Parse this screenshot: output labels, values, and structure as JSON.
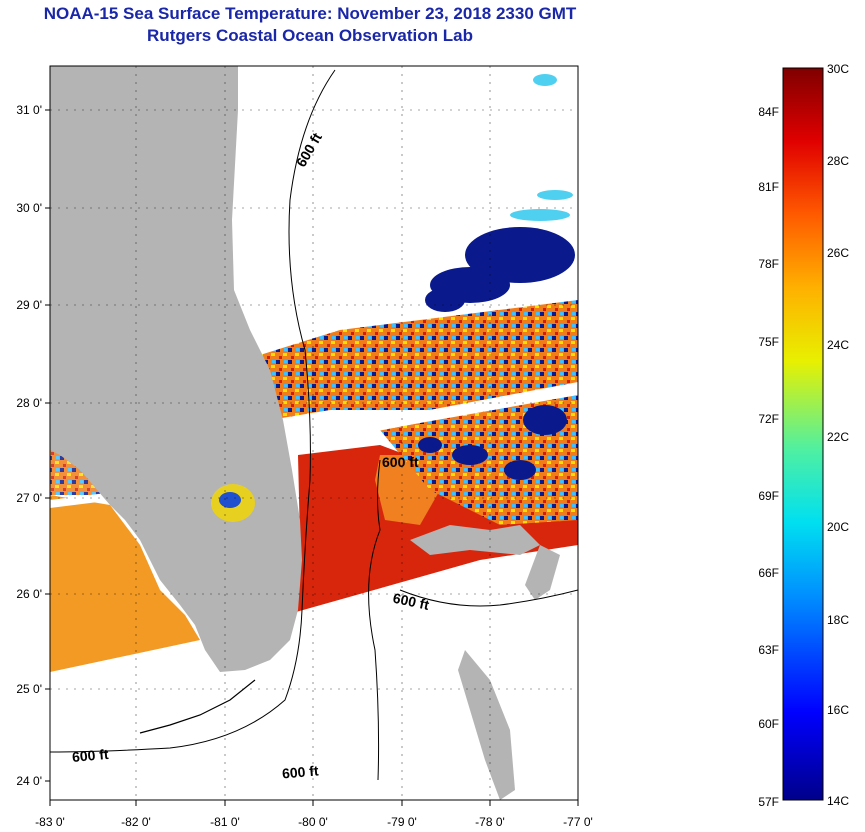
{
  "title_line1": "NOAA-15 Sea Surface Temperature:  November 23, 2018 2330 GMT",
  "title_line2": "Rutgers Coastal Ocean Observation Lab",
  "lat_labels": [
    "31 0'",
    "30 0'",
    "29 0'",
    "28 0'",
    "27 0'",
    "26 0'",
    "25 0'",
    "24 0'"
  ],
  "lon_labels": [
    "-83 0'",
    "-82 0'",
    "-81 0'",
    "-80 0'",
    "-79 0'",
    "-78 0'",
    "-77 0'"
  ],
  "contour_labels": [
    "600 ft",
    "600 ft",
    "600 ft",
    "600 ft",
    "600 ft"
  ],
  "colorbar": {
    "fahrenheit": [
      "84F",
      "81F",
      "78F",
      "75F",
      "72F",
      "69F",
      "66F",
      "63F",
      "60F",
      "57F"
    ],
    "celsius": [
      "30C",
      "28C",
      "26C",
      "24C",
      "22C",
      "20C",
      "18C",
      "16C",
      "14C"
    ]
  },
  "colors": {
    "land": "#b4b4b4",
    "title": "#1a27a8",
    "warm": "#d21e0a",
    "orange": "#f08a1e",
    "cold": "#0a1a8c"
  }
}
